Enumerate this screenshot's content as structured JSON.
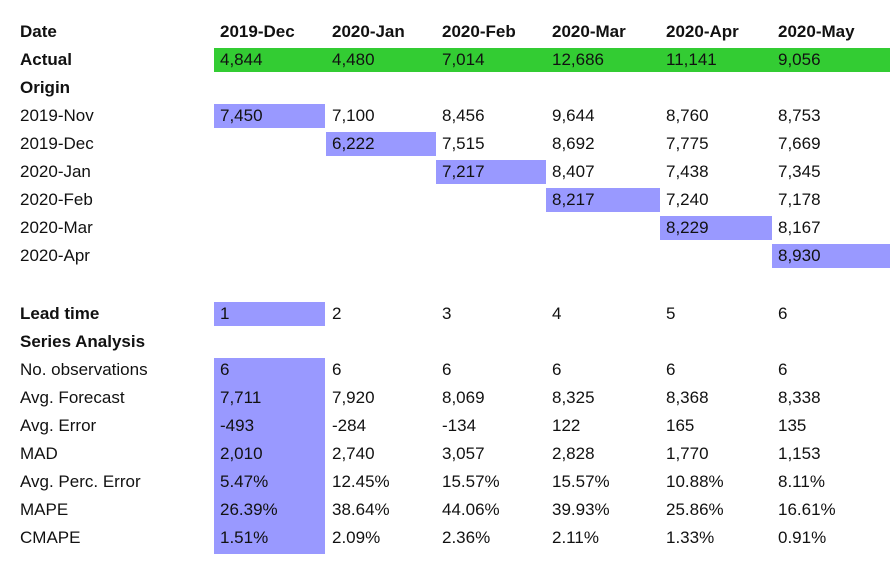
{
  "header": {
    "label": "Date",
    "columns": [
      "2019-Dec",
      "2020-Jan",
      "2020-Feb",
      "2020-Mar",
      "2020-Apr",
      "2020-May"
    ]
  },
  "actual": {
    "label": "Actual",
    "values": [
      "4,844",
      "4,480",
      "7,014",
      "12,686",
      "11,141",
      "9,056"
    ]
  },
  "origin": {
    "label": "Origin",
    "rows": [
      {
        "label": "2019-Nov",
        "values": [
          "7,450",
          "7,100",
          "8,456",
          "9,644",
          "8,760",
          "8,753"
        ]
      },
      {
        "label": "2019-Dec",
        "values": [
          "",
          "6,222",
          "7,515",
          "8,692",
          "7,775",
          "7,669"
        ]
      },
      {
        "label": "2020-Jan",
        "values": [
          "",
          "",
          "7,217",
          "8,407",
          "7,438",
          "7,345"
        ]
      },
      {
        "label": "2020-Feb",
        "values": [
          "",
          "",
          "",
          "8,217",
          "7,240",
          "7,178"
        ]
      },
      {
        "label": "2020-Mar",
        "values": [
          "",
          "",
          "",
          "",
          "8,229",
          "8,167"
        ]
      },
      {
        "label": "2020-Apr",
        "values": [
          "",
          "",
          "",
          "",
          "",
          "8,930"
        ]
      }
    ]
  },
  "lead_time": {
    "label": "Lead time",
    "values": [
      "1",
      "2",
      "3",
      "4",
      "5",
      "6"
    ]
  },
  "series_analysis": {
    "label": "Series Analysis",
    "rows": [
      {
        "label": "No. observations",
        "values": [
          "6",
          "6",
          "6",
          "6",
          "6",
          "6"
        ]
      },
      {
        "label": "Avg. Forecast",
        "values": [
          "7,711",
          "7,920",
          "8,069",
          "8,325",
          "8,368",
          "8,338"
        ]
      },
      {
        "label": "Avg. Error",
        "values": [
          "-493",
          "-284",
          "-134",
          "122",
          "165",
          "135"
        ]
      },
      {
        "label": "MAD",
        "values": [
          "2,010",
          "2,740",
          "3,057",
          "2,828",
          "1,770",
          "1,153"
        ]
      },
      {
        "label": "Avg. Perc. Error",
        "values": [
          "5.47%",
          "12.45%",
          "15.57%",
          "15.57%",
          "10.88%",
          "8.11%"
        ]
      },
      {
        "label": "MAPE",
        "values": [
          "26.39%",
          "38.64%",
          "44.06%",
          "39.93%",
          "25.86%",
          "16.61%"
        ]
      },
      {
        "label": "CMAPE",
        "values": [
          "1.51%",
          "2.09%",
          "2.36%",
          "2.11%",
          "1.33%",
          "0.91%"
        ]
      }
    ]
  },
  "colors": {
    "actual_fill": "#33cc33",
    "highlight_fill": "#9999ff"
  }
}
